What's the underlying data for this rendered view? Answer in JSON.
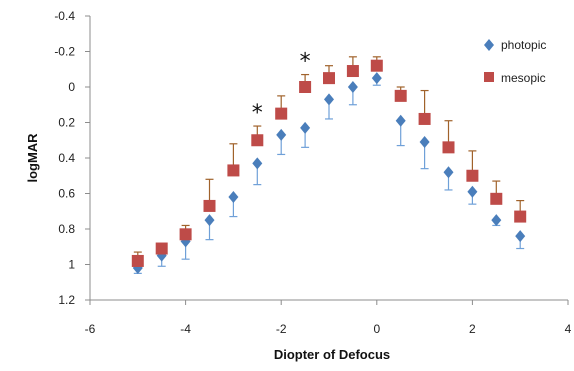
{
  "chart_data": {
    "type": "scatter",
    "title": "",
    "xlabel": "Diopter of Defocus",
    "ylabel": "logMAR",
    "xlim": [
      -6,
      4
    ],
    "ylim": [
      -0.4,
      1.2
    ],
    "y_axis_inverted": true,
    "x_ticks": [
      "-6",
      "-4",
      "-2",
      "0",
      "2",
      "4"
    ],
    "y_ticks": [
      "-0.4",
      "-0.2",
      "0",
      "0.2",
      "0.4",
      "0.6",
      "0.8",
      "1",
      "1.2"
    ],
    "x_tick_values": [
      -6,
      -4,
      -2,
      0,
      2,
      4
    ],
    "y_tick_values": [
      -0.4,
      -0.2,
      0,
      0.2,
      0.4,
      0.6,
      0.8,
      1,
      1.2
    ],
    "grid": false,
    "legend_position": "top-right",
    "series": [
      {
        "name": "photopic",
        "marker": "diamond",
        "color": "#4a7ebb",
        "error_color": "#6fa0d8",
        "x": [
          -5,
          -4.5,
          -4,
          -3.5,
          -3,
          -2.5,
          -2,
          -1.5,
          -1,
          -0.5,
          0,
          0.5,
          1,
          1.5,
          2,
          2.5,
          3
        ],
        "y": [
          1.02,
          0.95,
          0.87,
          0.75,
          0.62,
          0.43,
          0.27,
          0.23,
          0.07,
          0.0,
          -0.05,
          0.19,
          0.31,
          0.48,
          0.59,
          0.75,
          0.84
        ],
        "err": [
          0.03,
          0.06,
          0.1,
          0.11,
          0.11,
          0.12,
          0.11,
          0.11,
          0.11,
          0.1,
          0.04,
          0.14,
          0.15,
          0.1,
          0.07,
          0.03,
          0.07
        ]
      },
      {
        "name": "mesopic",
        "marker": "square",
        "color": "#be4b48",
        "error_color": "#a0622b",
        "x": [
          -5,
          -4.5,
          -4,
          -3.5,
          -3,
          -2.5,
          -2,
          -1.5,
          -1,
          -0.5,
          0,
          0.5,
          1,
          1.5,
          2,
          2.5,
          3
        ],
        "y": [
          0.98,
          0.91,
          0.83,
          0.67,
          0.47,
          0.3,
          0.15,
          0.0,
          -0.05,
          -0.09,
          -0.12,
          0.05,
          0.18,
          0.34,
          0.5,
          0.63,
          0.73
        ],
        "err": [
          0.05,
          0.02,
          0.05,
          0.15,
          0.15,
          0.08,
          0.1,
          0.07,
          0.07,
          0.08,
          0.05,
          0.05,
          0.16,
          0.15,
          0.14,
          0.1,
          0.09
        ]
      }
    ],
    "annotations": [
      {
        "text": "*",
        "x": -2.5
      },
      {
        "text": "*",
        "x": -1.5
      }
    ]
  }
}
